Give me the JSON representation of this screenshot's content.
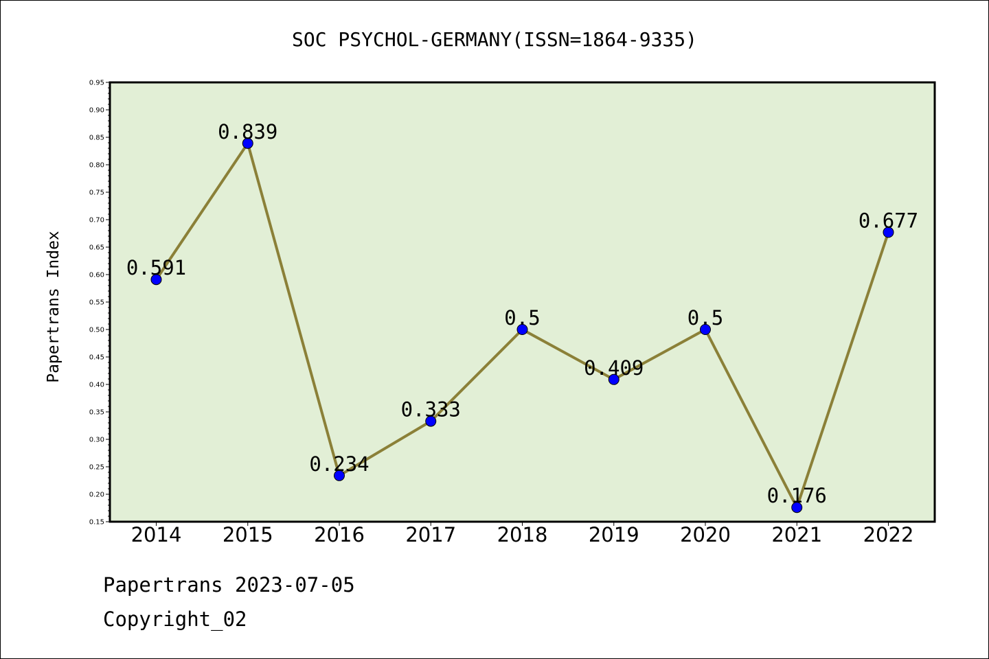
{
  "chart_data": {
    "type": "line",
    "title": "SOC PSYCHOL-GERMANY(ISSN=1864-9335)",
    "xlabel": "",
    "ylabel": "Papertrans Index",
    "categories": [
      "2014",
      "2015",
      "2016",
      "2017",
      "2018",
      "2019",
      "2020",
      "2021",
      "2022"
    ],
    "values": [
      0.591,
      0.839,
      0.234,
      0.333,
      0.5,
      0.409,
      0.5,
      0.176,
      0.677
    ],
    "data_labels": [
      "0.591",
      "0.839",
      "0.234",
      "0.333",
      "0.5",
      "0.409",
      "0.5",
      "0.176",
      "0.677"
    ],
    "ylim": [
      0.15,
      0.95
    ],
    "yticks": [
      "0.15",
      "0.20",
      "0.25",
      "0.30",
      "0.35",
      "0.40",
      "0.45",
      "0.50",
      "0.55",
      "0.60",
      "0.65",
      "0.70",
      "0.75",
      "0.80",
      "0.85",
      "0.90",
      "0.95"
    ],
    "grid": false,
    "legend": "none",
    "colors": {
      "plot_background": "#e2efd6",
      "line": "#8b8038",
      "marker": "#0000ff"
    }
  },
  "footer": {
    "line1": "Papertrans 2023-07-05",
    "line2": "Copyright_02"
  }
}
